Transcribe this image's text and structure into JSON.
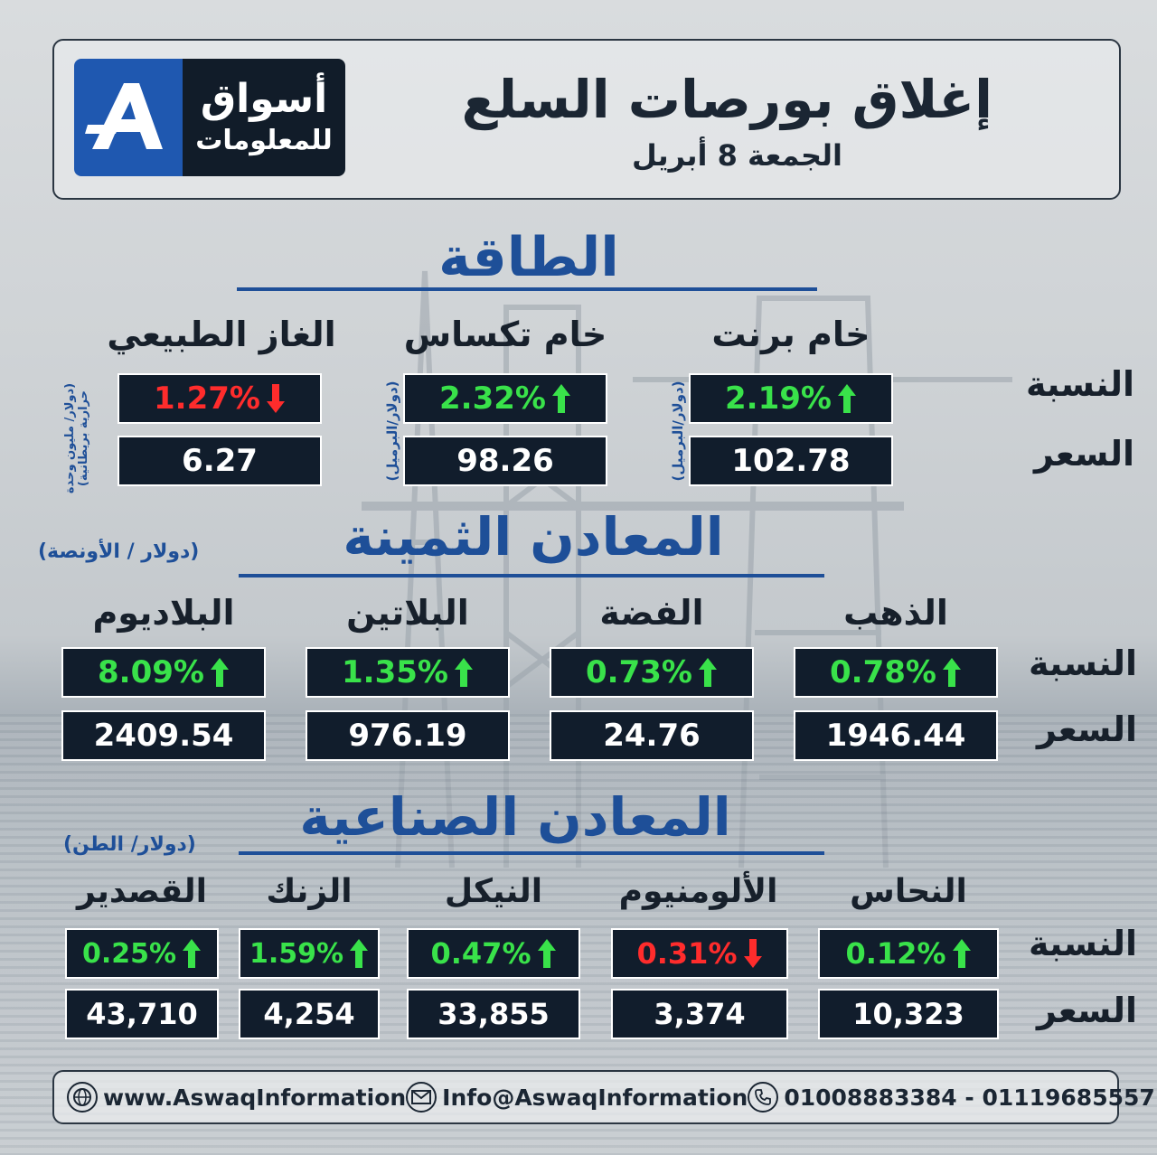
{
  "header": {
    "logo_line1": "أسواق",
    "logo_line2": "للمعلومات",
    "title": "إغلاق بورصات السلع",
    "subtitle": "الجمعة 8 أبريل"
  },
  "row_labels": {
    "pct": "النسبة",
    "price": "السعر"
  },
  "energy": {
    "title": "الطاقة",
    "items": [
      {
        "name": "خام برنت",
        "pct": "2.19%",
        "dir": "up",
        "price": "102.78",
        "unit": "(دولار/البرميل)"
      },
      {
        "name": "خام تكساس",
        "pct": "2.32%",
        "dir": "up",
        "price": "98.26",
        "unit": "(دولار/البرميل)"
      },
      {
        "name": "الغاز الطبيعي",
        "pct": "1.27%",
        "dir": "down",
        "price": "6.27",
        "unit": "(دولار/ مليون وحدة حرارية بريطانية)"
      }
    ]
  },
  "precious": {
    "title": "المعادن الثمينة",
    "unit": "(دولار / الأونصة)",
    "items": [
      {
        "name": "الذهب",
        "pct": "0.78%",
        "dir": "up",
        "price": "1946.44"
      },
      {
        "name": "الفضة",
        "pct": "0.73%",
        "dir": "up",
        "price": "24.76"
      },
      {
        "name": "البلاتين",
        "pct": "1.35%",
        "dir": "up",
        "price": "976.19"
      },
      {
        "name": "البلاديوم",
        "pct": "8.09%",
        "dir": "up",
        "price": "2409.54"
      }
    ]
  },
  "industrial": {
    "title": "المعادن الصناعية",
    "unit": "(دولار/ الطن)",
    "items": [
      {
        "name": "النحاس",
        "pct": "0.12%",
        "dir": "up",
        "price": "10,323"
      },
      {
        "name": "الألومنيوم",
        "pct": "0.31%",
        "dir": "down",
        "price": "3,374"
      },
      {
        "name": "النيكل",
        "pct": "0.47%",
        "dir": "up",
        "price": "33,855"
      },
      {
        "name": "الزنك",
        "pct": "1.59%",
        "dir": "up",
        "price": "4,254"
      },
      {
        "name": "القصدير",
        "pct": "0.25%",
        "dir": "up",
        "price": "43,710"
      }
    ]
  },
  "footer": {
    "website": "www.AswaqInformation",
    "email": "Info@AswaqInformation",
    "phones": "01008883384 - 01119685557"
  },
  "colors": {
    "up": "#39e24a",
    "down": "#ff2c2c",
    "accent": "#1e4f98",
    "box": "#111d2c"
  }
}
